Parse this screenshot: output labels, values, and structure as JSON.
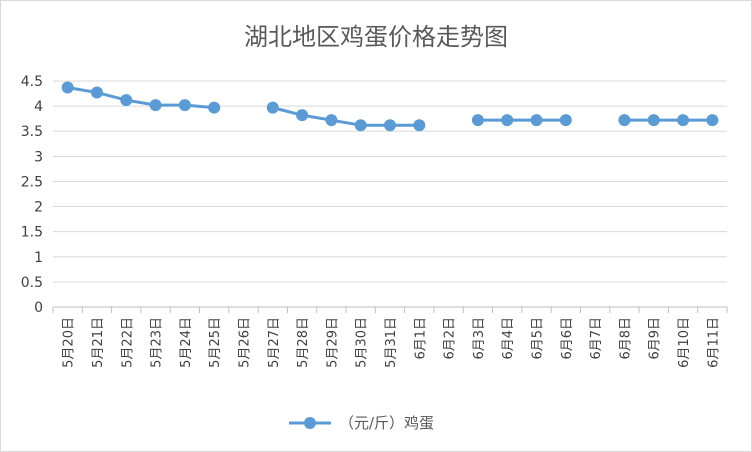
{
  "chart_data": {
    "type": "line",
    "title": "湖北地区鸡蛋价格走势图",
    "xlabel": "",
    "ylabel": "",
    "ylim": [
      0,
      4.5
    ],
    "yticks": [
      "0",
      "0.5",
      "1",
      "1.5",
      "2",
      "2.5",
      "3",
      "3.5",
      "4",
      "4.5"
    ],
    "grid": true,
    "legend_position": "bottom",
    "categories": [
      "5月20日",
      "5月21日",
      "5月22日",
      "5月23日",
      "5月24日",
      "5月25日",
      "5月26日",
      "5月27日",
      "5月28日",
      "5月29日",
      "5月30日",
      "5月31日",
      "6月1日",
      "6月2日",
      "6月3日",
      "6月4日",
      "6月5日",
      "6月6日",
      "6月7日",
      "6月8日",
      "6月9日",
      "6月10日",
      "6月11日"
    ],
    "series": [
      {
        "name": "（元/斤）鸡蛋",
        "color": "#5b9bd5",
        "values": [
          4.37,
          4.27,
          4.12,
          4.02,
          4.02,
          3.97,
          null,
          3.97,
          3.82,
          3.72,
          3.62,
          3.62,
          3.62,
          null,
          3.72,
          3.72,
          3.72,
          3.72,
          null,
          3.72,
          3.72,
          3.72,
          3.72
        ]
      }
    ]
  }
}
